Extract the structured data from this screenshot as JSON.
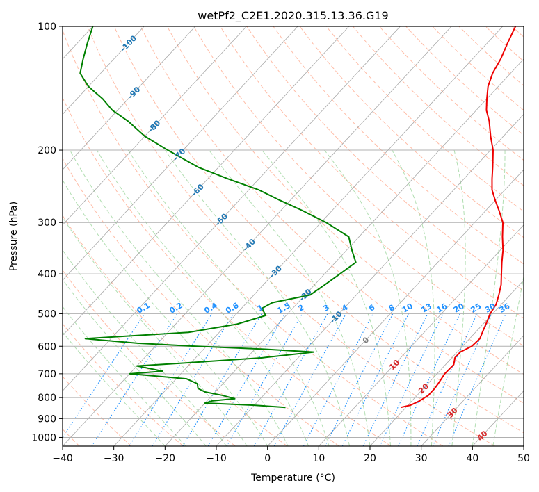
{
  "chart_data": {
    "type": "line",
    "subtype": "skew-t log-p",
    "title": "wetPf2_C2E1.2020.315.13.36.G19",
    "xlabel": "Temperature (°C)",
    "ylabel": "Pressure (hPa)",
    "xlim": [
      -40,
      50
    ],
    "ylim": [
      1050,
      100
    ],
    "x_ticks": [
      "−40",
      "−30",
      "−20",
      "−10",
      "0",
      "10",
      "20",
      "30",
      "40",
      "50"
    ],
    "y_ticks": [
      "100",
      "200",
      "300",
      "400",
      "500",
      "600",
      "700",
      "800",
      "900",
      "1000"
    ],
    "y_scale": "log",
    "grid": true,
    "colors": {
      "temperature": "#ee0000",
      "dewpoint": "#008000",
      "isotherm": "#999999",
      "dry_adiabat": "#ff9f80",
      "moist_adiabat": "#90d090",
      "mixing_ratio": "#1e90ff",
      "isotherm_label": "#1f77b4",
      "isotherm_label_warm": "#d62728",
      "isotherm_label_zero": "#7f7f7f"
    },
    "series": [
      {
        "role": "temperature",
        "pressure": [
          845,
          835,
          815,
          790,
          760,
          740,
          700,
          665,
          640,
          620,
          600,
          575,
          550,
          525,
          500,
          475,
          450,
          425,
          400,
          375,
          350,
          325,
          300,
          280,
          265,
          250,
          235,
          220,
          200,
          185,
          170,
          160,
          150,
          140,
          130,
          120,
          110,
          100
        ],
        "temperature": [
          19,
          20.5,
          21.5,
          22.2,
          22.2,
          22,
          21.5,
          21.6,
          20.6,
          20.6,
          21.8,
          22,
          21.2,
          20.4,
          19.5,
          19,
          17.8,
          16.4,
          14.5,
          12.5,
          10.5,
          8,
          5.5,
          2.5,
          0,
          -2.5,
          -4.5,
          -6.5,
          -9.5,
          -12.5,
          -15.5,
          -18,
          -20,
          -22,
          -23.5,
          -24.5,
          -26,
          -27.5
        ]
      },
      {
        "role": "dewpoint",
        "pressure": [
          845,
          835,
          825,
          815,
          805,
          790,
          775,
          760,
          740,
          720,
          700,
          690,
          670,
          660,
          640,
          620,
          610,
          600,
          590,
          575,
          555,
          530,
          505,
          485,
          470,
          450,
          425,
          400,
          375,
          350,
          325,
          300,
          280,
          265,
          250,
          235,
          220,
          200,
          185,
          170,
          160,
          150,
          140,
          130,
          120,
          110,
          100
        ],
        "dewpoint": [
          -3.5,
          -10,
          -20,
          -19,
          -15,
          -18,
          -22,
          -24,
          -25,
          -28,
          -40,
          -34,
          -40,
          -32,
          -17,
          -8,
          -18,
          -32,
          -44,
          -55,
          -36,
          -28,
          -24,
          -26,
          -25,
          -19,
          -18,
          -17,
          -16,
          -19,
          -22,
          -29,
          -36,
          -42,
          -48,
          -56,
          -64,
          -73,
          -80,
          -86,
          -91,
          -95,
          -100,
          -104,
          -106,
          -108,
          -110
        ]
      }
    ],
    "isotherm_labels": [
      "-100",
      "-90",
      "-80",
      "-70",
      "-60",
      "-50",
      "-40",
      "-30",
      "-20",
      "-10",
      "0",
      "10",
      "20",
      "30",
      "40"
    ],
    "mixing_ratio_labels": [
      "0.1",
      "0.2",
      "0.4",
      "0.6",
      "1",
      "1.5",
      "2",
      "3",
      "4",
      "6",
      "8",
      "10",
      "13",
      "16",
      "20",
      "25",
      "30",
      "36"
    ]
  }
}
